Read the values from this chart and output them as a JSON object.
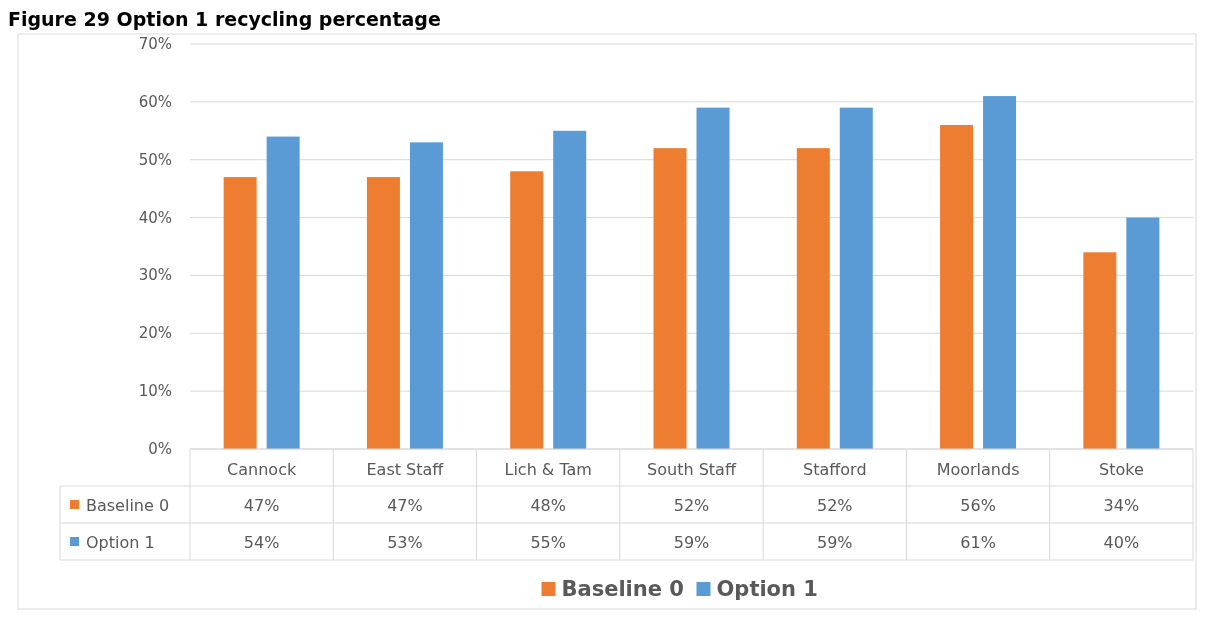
{
  "chart_data": {
    "type": "bar",
    "title": "Figure 29 Option 1 recycling percentage",
    "categories": [
      "Cannock",
      "East Staff",
      "Lich & Tam",
      "South Staff",
      "Stafford",
      "Moorlands",
      "Stoke"
    ],
    "series": [
      {
        "name": "Baseline 0",
        "color": "#ed7d31",
        "values": [
          47,
          47,
          48,
          52,
          52,
          56,
          34
        ],
        "value_labels": [
          "47%",
          "47%",
          "48%",
          "52%",
          "52%",
          "56%",
          "34%"
        ]
      },
      {
        "name": "Option 1",
        "color": "#5b9bd5",
        "values": [
          54,
          53,
          55,
          59,
          59,
          61,
          40
        ],
        "value_labels": [
          "54%",
          "53%",
          "55%",
          "59%",
          "59%",
          "61%",
          "40%"
        ]
      }
    ],
    "ylim": [
      0,
      70
    ],
    "yticks": [
      {
        "value": 0,
        "label": "0%"
      },
      {
        "value": 10,
        "label": "10%"
      },
      {
        "value": 20,
        "label": "20%"
      },
      {
        "value": 30,
        "label": "30%"
      },
      {
        "value": 40,
        "label": "40%"
      },
      {
        "value": 50,
        "label": "50%"
      },
      {
        "value": 60,
        "label": "60%"
      },
      {
        "value": 70,
        "label": "70%"
      }
    ],
    "grid": "y",
    "legend": "bottom"
  }
}
